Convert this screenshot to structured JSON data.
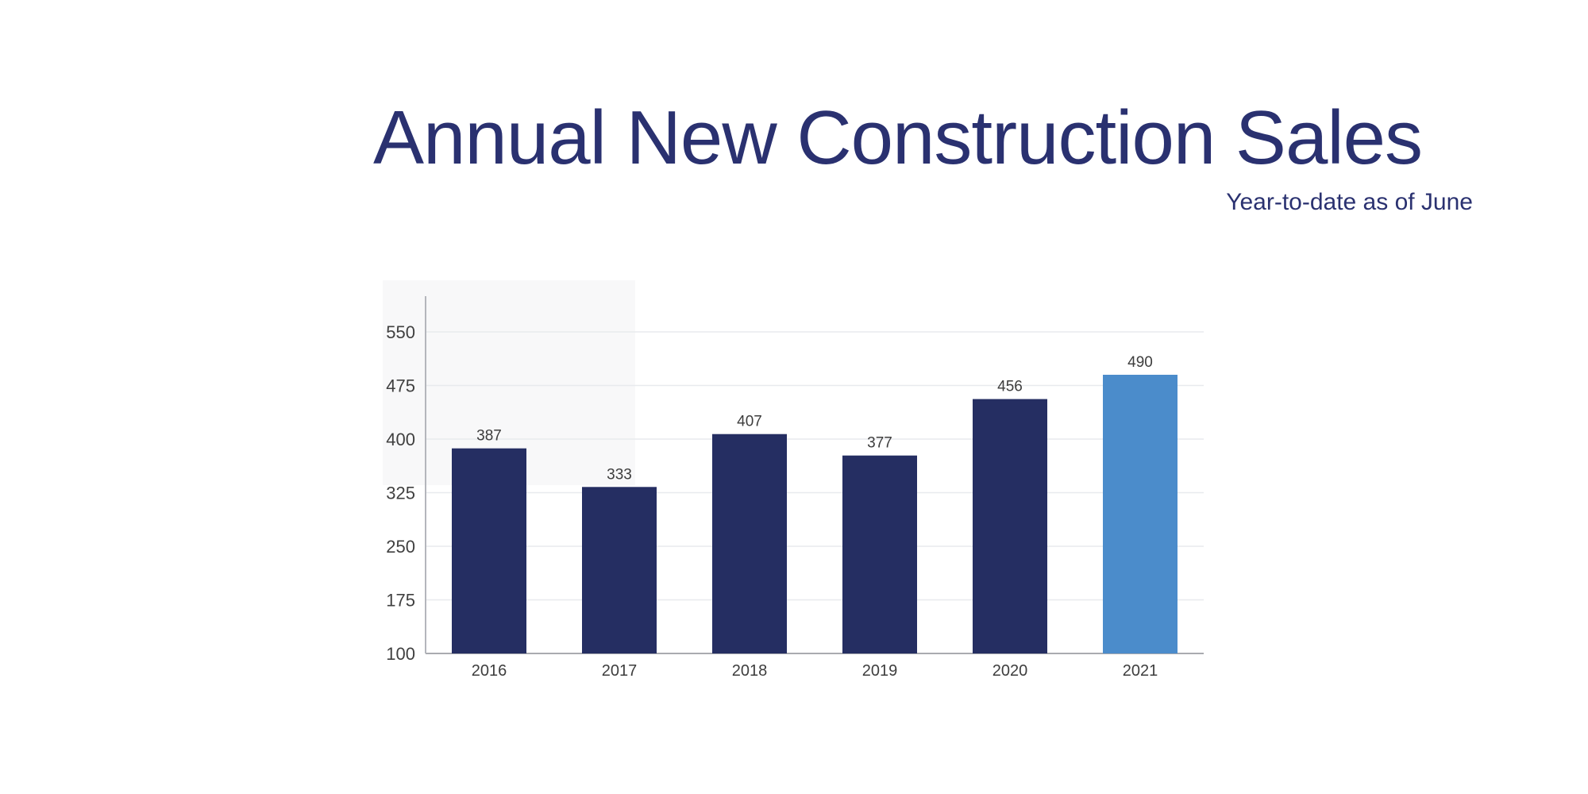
{
  "header": {
    "title": "Annual New Construction Sales",
    "subtitle": "Year-to-date as of June",
    "title_color": "#2a3170"
  },
  "chart_data": {
    "type": "bar",
    "title": "Annual New Construction Sales",
    "subtitle": "Year-to-date as of June",
    "categories": [
      "2016",
      "2017",
      "2018",
      "2019",
      "2020",
      "2021"
    ],
    "values": [
      387,
      333,
      407,
      377,
      456,
      490
    ],
    "value_labels_shown": true,
    "xlabel": "",
    "ylabel": "",
    "ylim": [
      100,
      595
    ],
    "yticks": [
      100,
      175,
      250,
      325,
      400,
      475,
      550
    ],
    "grid": true,
    "legend": "none",
    "highlight_index": 5,
    "colors": {
      "bar_default": "#252e62",
      "bar_highlight": "#4b8ccb",
      "gridline": "#e8eaee",
      "axis_line": "#b4b6bc",
      "baseline": "#a9abb0",
      "tick_label": "#404040",
      "value_label": "#3d3d3d"
    }
  }
}
